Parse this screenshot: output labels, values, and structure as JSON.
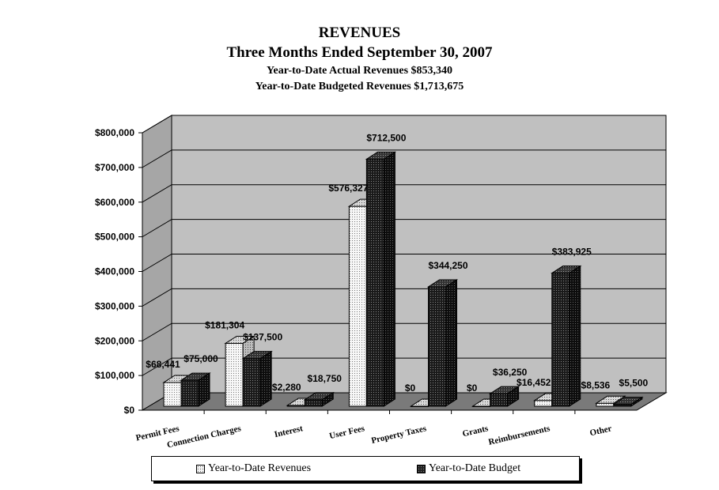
{
  "chart_data": {
    "type": "bar",
    "title": "REVENUES",
    "subtitle": "Three Months Ended September 30, 2007",
    "notes": [
      "Year-to-Date Actual Revenues $853,340",
      "Year-to-Date Budgeted Revenues $1,713,675"
    ],
    "categories": [
      "Permit Fees",
      "Connection Charges",
      "Interest",
      "User Fees",
      "Property Taxes",
      "Grants",
      "Reimbursements",
      "Other"
    ],
    "series": [
      {
        "name": "Year-to-Date Revenues",
        "values": [
          68441,
          181304,
          2280,
          576327,
          0,
          0,
          16452,
          8536
        ],
        "labels": [
          "$68,441",
          "$181,304",
          "$2,280",
          "$576,327",
          "$0",
          "$0",
          "$16,452",
          "$8,536"
        ],
        "color": "#f2f2f2"
      },
      {
        "name": "Year-to-Date Budget",
        "values": [
          75000,
          137500,
          18750,
          712500,
          344250,
          36250,
          383925,
          5500
        ],
        "labels": [
          "$75,000",
          "$137,500",
          "$18,750",
          "$712,500",
          "$344,250",
          "$36,250",
          "$383,925",
          "$5,500"
        ],
        "color": "#1e1e1e"
      }
    ],
    "y_ticks": [
      "$0",
      "$100,000",
      "$200,000",
      "$300,000",
      "$400,000",
      "$500,000",
      "$600,000",
      "$700,000",
      "$800,000"
    ],
    "ylim": [
      0,
      800000
    ],
    "grid": true,
    "legend_position": "bottom"
  }
}
